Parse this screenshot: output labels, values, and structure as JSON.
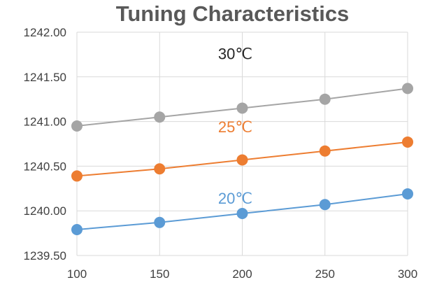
{
  "chart_data": {
    "type": "line",
    "title": "Tuning Characteristics",
    "xlabel": "",
    "ylabel": "",
    "x": [
      100,
      150,
      200,
      250,
      300
    ],
    "x_ticks": [
      "100",
      "150",
      "200",
      "250",
      "300"
    ],
    "y_ticks": [
      "1239.50",
      "1240.00",
      "1240.50",
      "1241.00",
      "1241.50",
      "1242.00"
    ],
    "xlim": [
      100,
      300
    ],
    "ylim": [
      1239.5,
      1242.0
    ],
    "grid": true,
    "legend": "none",
    "series": [
      {
        "name": "30℃",
        "color": "#a5a5a5",
        "label_color": "#262626",
        "values": [
          1240.95,
          1241.05,
          1241.15,
          1241.25,
          1241.37
        ],
        "label_at": 200,
        "label_y": 1241.7
      },
      {
        "name": "25℃",
        "color": "#ed7d31",
        "label_color": "#ed7d31",
        "values": [
          1240.39,
          1240.47,
          1240.57,
          1240.67,
          1240.77
        ],
        "label_at": 200,
        "label_y": 1240.88
      },
      {
        "name": "20℃",
        "color": "#5b9bd5",
        "label_color": "#5b9bd5",
        "values": [
          1239.79,
          1239.87,
          1239.97,
          1240.07,
          1240.19
        ],
        "label_at": 200,
        "label_y": 1240.08
      }
    ]
  }
}
